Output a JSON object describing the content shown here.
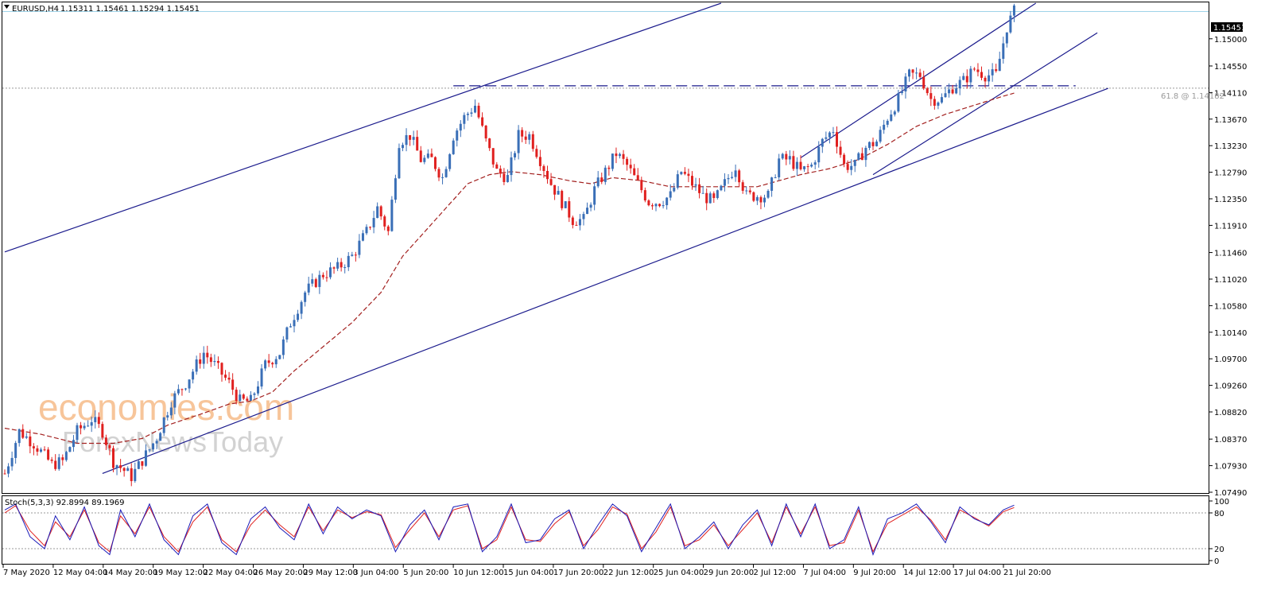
{
  "header": {
    "symbol": "EURUSD,H4",
    "ohlc": "1.15311 1.15461 1.15294 1.15451"
  },
  "current_price_label": "1.15451",
  "fib_label": "61.8 @ 1.14182",
  "watermark": {
    "brand": "economies.com",
    "sub": "ForexNewsToday"
  },
  "indicator": {
    "title": "Stoch(5,3,3) 92.8994 89.1969",
    "levels": [
      "100",
      "80",
      "20",
      "0"
    ]
  },
  "colors": {
    "bull": "#3a6fb7",
    "bear": "#e0201f",
    "trend": "#1a1a8c",
    "ma": "#a3201f",
    "stoch_main": "#1a1ab8",
    "stoch_signal": "#e0201f",
    "price_line": "#9fd3e8",
    "watermark_orange": "#f7c59a",
    "watermark_gray": "#d2d2d2"
  },
  "chart_data": {
    "type": "candlestick",
    "symbol": "EURUSD",
    "timeframe": "H4",
    "y_ticks": [
      "1.15000",
      "1.14550",
      "1.14110",
      "1.13670",
      "1.13230",
      "1.12790",
      "1.12350",
      "1.11910",
      "1.11460",
      "1.11020",
      "1.10580",
      "1.10140",
      "1.09700",
      "1.09260",
      "1.08820",
      "1.08370",
      "1.07930",
      "1.07490"
    ],
    "ylim": [
      1.0749,
      1.1559
    ],
    "x_ticks": [
      "7 May 2020",
      "12 May 04:00",
      "14 May 20:00",
      "19 May 12:00",
      "22 May 04:00",
      "26 May 20:00",
      "29 May 12:00",
      "3 Jun 04:00",
      "5 Jun 20:00",
      "10 Jun 12:00",
      "15 Jun 04:00",
      "17 Jun 20:00",
      "22 Jun 12:00",
      "25 Jun 04:00",
      "29 Jun 20:00",
      "2 Jul 12:00",
      "7 Jul 04:00",
      "9 Jul 20:00",
      "14 Jul 12:00",
      "17 Jul 04:00",
      "21 Jul 20:00"
    ],
    "price_path": [
      [
        0,
        1.078
      ],
      [
        4,
        1.085
      ],
      [
        8,
        1.083
      ],
      [
        13,
        1.0795
      ],
      [
        16,
        1.08
      ],
      [
        20,
        1.085
      ],
      [
        24,
        1.087
      ],
      [
        27,
        1.085
      ],
      [
        30,
        1.08
      ],
      [
        35,
        1.0775
      ],
      [
        40,
        1.082
      ],
      [
        42,
        1.084
      ],
      [
        46,
        1.09
      ],
      [
        50,
        1.093
      ],
      [
        55,
        1.098
      ],
      [
        58,
        1.096
      ],
      [
        62,
        1.093
      ],
      [
        65,
        1.09
      ],
      [
        68,
        1.09
      ],
      [
        72,
        1.096
      ],
      [
        76,
        1.098
      ],
      [
        79,
        1.103
      ],
      [
        83,
        1.108
      ],
      [
        88,
        1.111
      ],
      [
        92,
        1.112
      ],
      [
        96,
        1.114
      ],
      [
        100,
        1.118
      ],
      [
        103,
        1.122
      ],
      [
        106,
        1.118
      ],
      [
        109,
        1.133
      ],
      [
        112,
        1.134
      ],
      [
        115,
        1.13
      ],
      [
        118,
        1.13
      ],
      [
        121,
        1.127
      ],
      [
        124,
        1.134
      ],
      [
        127,
        1.137
      ],
      [
        130,
        1.139
      ],
      [
        133,
        1.133
      ],
      [
        136,
        1.128
      ],
      [
        139,
        1.127
      ],
      [
        142,
        1.134
      ],
      [
        145,
        1.134
      ],
      [
        148,
        1.13
      ],
      [
        151,
        1.126
      ],
      [
        154,
        1.123
      ],
      [
        157,
        1.12
      ],
      [
        160,
        1.12
      ],
      [
        163,
        1.125
      ],
      [
        166,
        1.128
      ],
      [
        169,
        1.131
      ],
      [
        172,
        1.129
      ],
      [
        175,
        1.126
      ],
      [
        178,
        1.123
      ],
      [
        181,
        1.123
      ],
      [
        184,
        1.124
      ],
      [
        187,
        1.128
      ],
      [
        190,
        1.126
      ],
      [
        193,
        1.124
      ],
      [
        196,
        1.123
      ],
      [
        199,
        1.126
      ],
      [
        202,
        1.129
      ],
      [
        205,
        1.124
      ],
      [
        208,
        1.124
      ],
      [
        211,
        1.124
      ],
      [
        214,
        1.13
      ],
      [
        217,
        1.13
      ],
      [
        220,
        1.128
      ],
      [
        223,
        1.129
      ],
      [
        226,
        1.133
      ],
      [
        229,
        1.135
      ],
      [
        232,
        1.129
      ],
      [
        235,
        1.129
      ],
      [
        238,
        1.132
      ],
      [
        241,
        1.133
      ],
      [
        244,
        1.137
      ],
      [
        247,
        1.14
      ],
      [
        250,
        1.144
      ],
      [
        253,
        1.144
      ],
      [
        256,
        1.14
      ],
      [
        259,
        1.14
      ],
      [
        262,
        1.142
      ],
      [
        265,
        1.143
      ],
      [
        268,
        1.145
      ],
      [
        271,
        1.144
      ],
      [
        274,
        1.144
      ],
      [
        277,
        1.152
      ],
      [
        279,
        1.1545
      ]
    ],
    "moving_average": [
      [
        0,
        1.0855
      ],
      [
        10,
        1.0845
      ],
      [
        20,
        1.083
      ],
      [
        30,
        1.083
      ],
      [
        38,
        1.0838
      ],
      [
        45,
        1.086
      ],
      [
        55,
        1.088
      ],
      [
        62,
        1.0895
      ],
      [
        68,
        1.09
      ],
      [
        74,
        1.0915
      ],
      [
        80,
        1.095
      ],
      [
        88,
        1.099
      ],
      [
        96,
        1.103
      ],
      [
        104,
        1.108
      ],
      [
        110,
        1.114
      ],
      [
        116,
        1.118
      ],
      [
        122,
        1.122
      ],
      [
        128,
        1.126
      ],
      [
        134,
        1.1275
      ],
      [
        140,
        1.128
      ],
      [
        148,
        1.1275
      ],
      [
        156,
        1.1265
      ],
      [
        162,
        1.126
      ],
      [
        168,
        1.127
      ],
      [
        176,
        1.1265
      ],
      [
        184,
        1.1255
      ],
      [
        192,
        1.1255
      ],
      [
        200,
        1.1255
      ],
      [
        208,
        1.1255
      ],
      [
        214,
        1.1265
      ],
      [
        220,
        1.1275
      ],
      [
        228,
        1.1285
      ],
      [
        236,
        1.13
      ],
      [
        244,
        1.1325
      ],
      [
        252,
        1.1355
      ],
      [
        260,
        1.1375
      ],
      [
        268,
        1.139
      ],
      [
        276,
        1.1405
      ],
      [
        279,
        1.141
      ]
    ],
    "trendlines": [
      {
        "from": [
          0,
          1.1147
        ],
        "to": [
          198,
          1.1559
        ]
      },
      {
        "from": [
          27,
          1.078
        ],
        "to": [
          305,
          1.1418
        ]
      },
      {
        "from": [
          220,
          1.1303
        ],
        "to": [
          285,
          1.1559
        ]
      },
      {
        "from": [
          240,
          1.1275
        ],
        "to": [
          302,
          1.151
        ]
      }
    ],
    "horizontal_levels": [
      {
        "label": "61.8 @ 1.14182",
        "value": 1.14182
      },
      {
        "label": "1.15451",
        "value": 1.15451
      }
    ],
    "stochastic": {
      "main": [
        [
          0,
          85
        ],
        [
          3,
          95
        ],
        [
          7,
          40
        ],
        [
          11,
          20
        ],
        [
          14,
          75
        ],
        [
          18,
          35
        ],
        [
          22,
          90
        ],
        [
          26,
          25
        ],
        [
          29,
          10
        ],
        [
          32,
          85
        ],
        [
          36,
          40
        ],
        [
          40,
          95
        ],
        [
          44,
          35
        ],
        [
          48,
          10
        ],
        [
          52,
          75
        ],
        [
          56,
          95
        ],
        [
          60,
          30
        ],
        [
          64,
          10
        ],
        [
          68,
          70
        ],
        [
          72,
          90
        ],
        [
          76,
          55
        ],
        [
          80,
          35
        ],
        [
          84,
          95
        ],
        [
          88,
          45
        ],
        [
          92,
          90
        ],
        [
          96,
          70
        ],
        [
          100,
          85
        ],
        [
          104,
          75
        ],
        [
          108,
          15
        ],
        [
          112,
          60
        ],
        [
          116,
          85
        ],
        [
          120,
          35
        ],
        [
          124,
          90
        ],
        [
          128,
          95
        ],
        [
          132,
          15
        ],
        [
          136,
          40
        ],
        [
          140,
          95
        ],
        [
          144,
          30
        ],
        [
          148,
          35
        ],
        [
          152,
          70
        ],
        [
          156,
          85
        ],
        [
          160,
          20
        ],
        [
          164,
          60
        ],
        [
          168,
          95
        ],
        [
          172,
          75
        ],
        [
          176,
          15
        ],
        [
          180,
          55
        ],
        [
          184,
          95
        ],
        [
          188,
          20
        ],
        [
          192,
          40
        ],
        [
          196,
          65
        ],
        [
          200,
          20
        ],
        [
          204,
          60
        ],
        [
          208,
          85
        ],
        [
          212,
          25
        ],
        [
          216,
          95
        ],
        [
          220,
          40
        ],
        [
          224,
          95
        ],
        [
          228,
          20
        ],
        [
          232,
          35
        ],
        [
          236,
          90
        ],
        [
          240,
          10
        ],
        [
          244,
          70
        ],
        [
          248,
          80
        ],
        [
          252,
          95
        ],
        [
          256,
          65
        ],
        [
          260,
          30
        ],
        [
          264,
          90
        ],
        [
          268,
          70
        ],
        [
          272,
          60
        ],
        [
          276,
          85
        ],
        [
          279,
          93
        ]
      ],
      "signal": [
        [
          0,
          80
        ],
        [
          3,
          92
        ],
        [
          7,
          50
        ],
        [
          11,
          25
        ],
        [
          14,
          65
        ],
        [
          18,
          40
        ],
        [
          22,
          85
        ],
        [
          26,
          30
        ],
        [
          29,
          15
        ],
        [
          32,
          75
        ],
        [
          36,
          45
        ],
        [
          40,
          90
        ],
        [
          44,
          40
        ],
        [
          48,
          15
        ],
        [
          52,
          65
        ],
        [
          56,
          90
        ],
        [
          60,
          35
        ],
        [
          64,
          15
        ],
        [
          68,
          60
        ],
        [
          72,
          85
        ],
        [
          76,
          60
        ],
        [
          80,
          40
        ],
        [
          84,
          90
        ],
        [
          88,
          50
        ],
        [
          92,
          85
        ],
        [
          96,
          72
        ],
        [
          100,
          82
        ],
        [
          104,
          77
        ],
        [
          108,
          22
        ],
        [
          112,
          52
        ],
        [
          116,
          80
        ],
        [
          120,
          40
        ],
        [
          124,
          85
        ],
        [
          128,
          92
        ],
        [
          132,
          20
        ],
        [
          136,
          35
        ],
        [
          140,
          90
        ],
        [
          144,
          35
        ],
        [
          148,
          32
        ],
        [
          152,
          62
        ],
        [
          156,
          82
        ],
        [
          160,
          25
        ],
        [
          164,
          52
        ],
        [
          168,
          90
        ],
        [
          172,
          78
        ],
        [
          176,
          20
        ],
        [
          180,
          48
        ],
        [
          184,
          90
        ],
        [
          188,
          25
        ],
        [
          192,
          35
        ],
        [
          196,
          60
        ],
        [
          200,
          25
        ],
        [
          204,
          52
        ],
        [
          208,
          80
        ],
        [
          212,
          30
        ],
        [
          216,
          90
        ],
        [
          220,
          45
        ],
        [
          224,
          90
        ],
        [
          228,
          25
        ],
        [
          232,
          30
        ],
        [
          236,
          85
        ],
        [
          240,
          15
        ],
        [
          244,
          62
        ],
        [
          248,
          76
        ],
        [
          252,
          90
        ],
        [
          256,
          68
        ],
        [
          260,
          35
        ],
        [
          264,
          85
        ],
        [
          268,
          72
        ],
        [
          272,
          58
        ],
        [
          276,
          82
        ],
        [
          279,
          89
        ]
      ],
      "levels": [
        100,
        80,
        20,
        0
      ]
    }
  }
}
